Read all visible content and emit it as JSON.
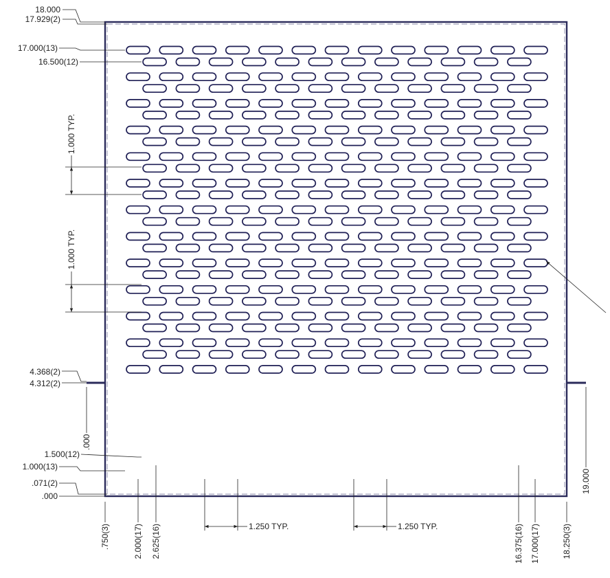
{
  "labels": {
    "top_outer": "18.000",
    "top_inner": "17.929(2)",
    "row_odd_top": "17.000(13)",
    "row_even_top": "16.500(12)",
    "pitch_upper": "1.000 TYP.",
    "pitch_lower": "1.000 TYP.",
    "tab_upper": "4.368(2)",
    "tab_lower": "4.312(2)",
    "left_origin": ".000",
    "right_edge": "19.000",
    "row_even_bottom": "1.500(12)",
    "row_odd_bottom": "1.000(13)",
    "bottom_inner": ".071(2)",
    "bottom_outer": ".000",
    "col_left_edge": ".750(3)",
    "col_odd_first": "2.000(17)",
    "col_even_first": "2.625(16)",
    "col_even_last": "16.375(16)",
    "col_odd_last": "17.000(17)",
    "col_right_edge": "18.250(3)",
    "spacing_left": "1.250 TYP.",
    "spacing_right": "1.250 TYP."
  },
  "pattern": {
    "odd_rows": 13,
    "odd_cols": 13,
    "even_rows": 12,
    "even_cols": 12,
    "row_pitch": 1.0,
    "col_pitch": 1.25
  },
  "colors": {
    "part_outline": "#2a2a5a",
    "slot_outline": "#1f1f55",
    "dimension_lines": "#222222"
  }
}
